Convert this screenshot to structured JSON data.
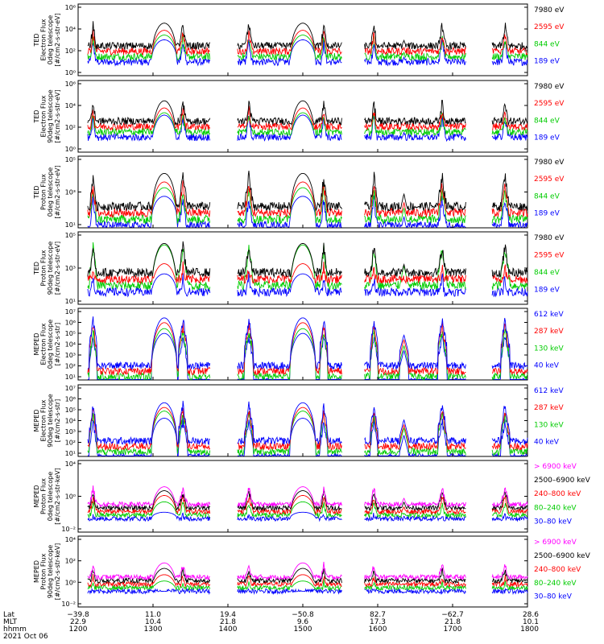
{
  "chart_data": [
    {
      "type": "line",
      "ylabel": [
        "TED",
        "Electron Flux",
        "0deg telescope",
        "[#/cm2-s-str-eV]"
      ],
      "yticks": [
        "10⁶",
        "10⁴",
        "10²",
        "10⁰"
      ],
      "yrange": [
        0,
        6
      ],
      "series": [
        {
          "name": "7980 eV",
          "color": "#000000"
        },
        {
          "name": "2595 eV",
          "color": "#ff0000"
        },
        {
          "name": "844 eV",
          "color": "#00cc00"
        },
        {
          "name": "189 eV",
          "color": "#0000ff"
        }
      ],
      "profile": {
        "base": 2.5,
        "peaks": [
          3.8,
          3.2,
          2.8,
          2.4
        ],
        "floor": 1.2
      }
    },
    {
      "type": "line",
      "ylabel": [
        "TED",
        "Electron Flux",
        "90deg telescope",
        "[#/cm2-s-str-eV]"
      ],
      "yticks": [
        "10⁶",
        "10⁴",
        "10²",
        "10⁰"
      ],
      "yrange": [
        0,
        6
      ],
      "series": [
        {
          "name": "7980 eV",
          "color": "#000000"
        },
        {
          "name": "2595 eV",
          "color": "#ff0000"
        },
        {
          "name": "844 eV",
          "color": "#00cc00"
        },
        {
          "name": "189 eV",
          "color": "#0000ff"
        }
      ],
      "profile": {
        "base": 2.6,
        "peaks": [
          3.7,
          3.1,
          2.7,
          2.5
        ],
        "floor": 0.2
      }
    },
    {
      "type": "line",
      "ylabel": [
        "TED",
        "Proton Flux",
        "0deg telescope",
        "[#/cm2-s-str-eV]"
      ],
      "yticks": [
        "10⁵",
        "10³",
        "10¹"
      ],
      "yrange": [
        0,
        5
      ],
      "series": [
        {
          "name": "7980 eV",
          "color": "#000000"
        },
        {
          "name": "2595 eV",
          "color": "#ff0000"
        },
        {
          "name": "844 eV",
          "color": "#00cc00"
        },
        {
          "name": "189 eV",
          "color": "#0000ff"
        }
      ],
      "profile": {
        "base": 1.5,
        "peaks": [
          3.2,
          2.6,
          2.2,
          1.6
        ],
        "floor": 0.5
      }
    },
    {
      "type": "line",
      "ylabel": [
        "TED",
        "Proton Flux",
        "90deg telescope",
        "[#/cm2-s-str-eV]"
      ],
      "yticks": [
        "10⁵",
        "10³",
        "10¹"
      ],
      "yrange": [
        0,
        5
      ],
      "series": [
        {
          "name": "7980 eV",
          "color": "#000000"
        },
        {
          "name": "2595 eV",
          "color": "#ff0000"
        },
        {
          "name": "844 eV",
          "color": "#00cc00"
        },
        {
          "name": "189 eV",
          "color": "#0000ff"
        }
      ],
      "profile": {
        "base": 2.2,
        "peaks": [
          3.6,
          2.2,
          3.5,
          1.5
        ],
        "floor": 0.6
      }
    },
    {
      "type": "line",
      "ylabel": [
        "MEPED",
        "Electron Flux",
        "0deg telescope",
        "[#/cm2-s-str]"
      ],
      "yticks": [
        "10⁷",
        "10⁶",
        "10⁵",
        "10⁴",
        "10³",
        "10²",
        "10¹"
      ],
      "yrange": [
        1,
        7
      ],
      "series": [
        {
          "name": "612 keV",
          "color": "#0000ff"
        },
        {
          "name": "287 keV",
          "color": "#ff0000"
        },
        {
          "name": "130 keV",
          "color": "#00cc00"
        },
        {
          "name": "40 keV",
          "color": "#0000ff"
        }
      ],
      "profile": {
        "base": 2.2,
        "peaks": [
          5.6,
          5.2,
          4.7,
          4.3
        ],
        "floor": 2.0
      }
    },
    {
      "type": "line",
      "ylabel": [
        "MEPED",
        "Electron Flux",
        "90deg telescope",
        "[#/cm2-s-str]"
      ],
      "yticks": [
        "10⁷",
        "10⁶",
        "10⁵",
        "10⁴",
        "10³",
        "10²",
        "10¹"
      ],
      "yrange": [
        1,
        7
      ],
      "series": [
        {
          "name": "612 keV",
          "color": "#0000ff"
        },
        {
          "name": "287 keV",
          "color": "#ff0000"
        },
        {
          "name": "130 keV",
          "color": "#00cc00"
        },
        {
          "name": "40 keV",
          "color": "#0000ff"
        }
      ],
      "profile": {
        "base": 2.3,
        "peaks": [
          4.9,
          4.5,
          4.2,
          3.6
        ],
        "floor": 1.9
      }
    },
    {
      "type": "line",
      "ylabel": [
        "MEPED",
        "Proton Flux",
        "0deg telescope",
        "[#/cm2-s-str-keV]"
      ],
      "yticks": [
        "10⁴",
        "10⁰",
        "10⁻²"
      ],
      "yrange": [
        -3,
        6
      ],
      "series": [
        {
          "name": "> 6900 keV",
          "color": "#ff00ff"
        },
        {
          "name": "2500–6900 keV",
          "color": "#000000"
        },
        {
          "name": "240–800 keV",
          "color": "#ff0000"
        },
        {
          "name": "80–240 keV",
          "color": "#00cc00"
        },
        {
          "name": "30–80 keV",
          "color": "#0000ff"
        }
      ],
      "profile": {
        "base": 0.5,
        "peaks": [
          2.1,
          1.6,
          1.0,
          0.2,
          -1.1
        ],
        "floor": -1.3
      }
    },
    {
      "type": "line",
      "ylabel": [
        "MEPED",
        "Proton Flux",
        "90deg telescope",
        "[#/cm2-s-str-keV]"
      ],
      "yticks": [
        "10⁴",
        "10²",
        "10⁰",
        "10⁻²"
      ],
      "yrange": [
        -3,
        6
      ],
      "series": [
        {
          "name": "> 6900 keV",
          "color": "#ff00ff"
        },
        {
          "name": "2500–6900 keV",
          "color": "#000000"
        },
        {
          "name": "240–800 keV",
          "color": "#ff0000"
        },
        {
          "name": "80–240 keV",
          "color": "#00cc00"
        },
        {
          "name": "30–80 keV",
          "color": "#0000ff"
        }
      ],
      "profile": {
        "base": 0.8,
        "peaks": [
          2.0,
          1.3,
          0.5,
          -0.3,
          -1.6
        ],
        "floor": -1.3
      }
    }
  ],
  "x_axis": {
    "row_labels": [
      "Lat",
      "MLT",
      "hhmm",
      "2021 Oct 06"
    ],
    "ticks": [
      {
        "t": 1200,
        "lat": "−39.8",
        "mlt": "22.9",
        "hhmm": "1200"
      },
      {
        "t": 1300,
        "lat": "11.0",
        "mlt": "10.4",
        "hhmm": "1300"
      },
      {
        "t": 1400,
        "lat": "19.4",
        "mlt": "21.8",
        "hhmm": "1400"
      },
      {
        "t": 1500,
        "lat": "−50.8",
        "mlt": "9.6",
        "hhmm": "1500"
      },
      {
        "t": 1600,
        "lat": "82.7",
        "mlt": "17.3",
        "hhmm": "1600"
      },
      {
        "t": 1700,
        "lat": "−62.7",
        "mlt": "21.8",
        "hhmm": "1700"
      },
      {
        "t": 1800,
        "lat": "28.6",
        "mlt": "10.1",
        "hhmm": "1800"
      }
    ]
  },
  "events": [
    {
      "center": 1220,
      "kind": "spike",
      "width": 5
    },
    {
      "center": 1315,
      "kind": "dome",
      "width": 17
    },
    {
      "center": 1340,
      "kind": "spike",
      "width": 6
    },
    {
      "center": 1428,
      "kind": "spike",
      "width": 6
    },
    {
      "center": 1500,
      "kind": "dome",
      "width": 17
    },
    {
      "center": 1528,
      "kind": "spike",
      "width": 5
    },
    {
      "center": 1595,
      "kind": "spike",
      "width": 5
    },
    {
      "center": 1635,
      "kind": "small",
      "width": 6
    },
    {
      "center": 1686,
      "kind": "spike",
      "width": 6
    },
    {
      "center": 1770,
      "kind": "spike",
      "width": 6
    }
  ],
  "gaps": [
    [
      1200,
      1212
    ],
    [
      1376,
      1412
    ],
    [
      1552,
      1582
    ],
    [
      1718,
      1752
    ]
  ]
}
